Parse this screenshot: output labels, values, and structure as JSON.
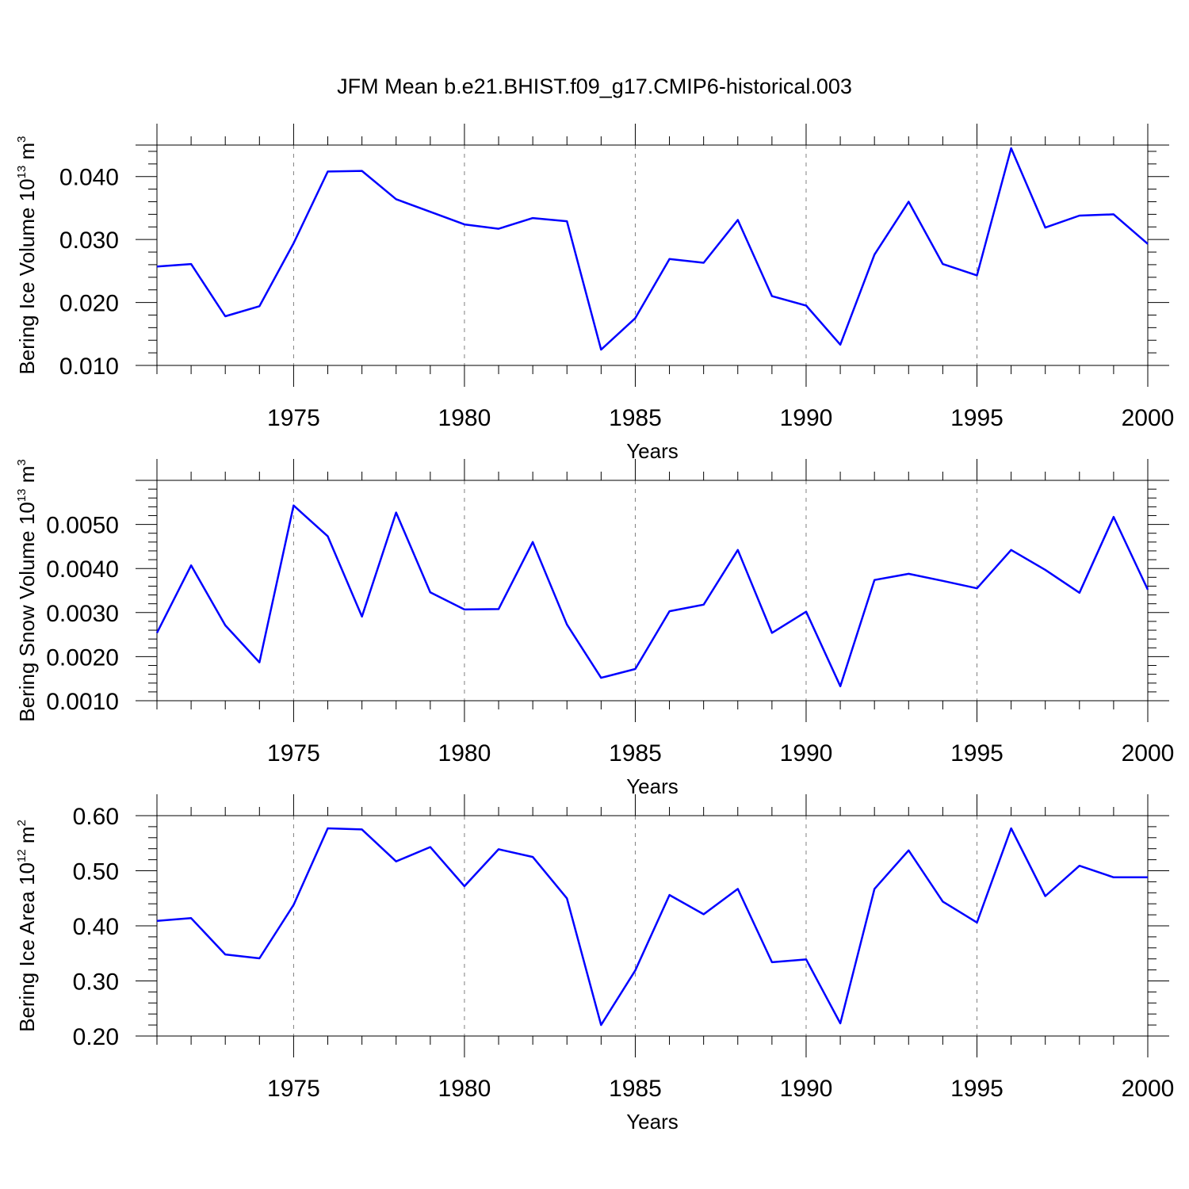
{
  "chart_data": {
    "title": "JFM Mean b.e21.BHIST.f09_g17.CMIP6-historical.003",
    "x": [
      1971,
      1972,
      1973,
      1974,
      1975,
      1976,
      1977,
      1978,
      1979,
      1980,
      1981,
      1982,
      1983,
      1984,
      1985,
      1986,
      1987,
      1988,
      1989,
      1990,
      1991,
      1992,
      1993,
      1994,
      1995,
      1996,
      1997,
      1998,
      1999,
      2000
    ],
    "xlim": [
      1971,
      2000
    ],
    "xticks": [
      1975,
      1980,
      1985,
      1990,
      1995,
      2000
    ],
    "xtick_labels": [
      "1975",
      "1980",
      "1985",
      "1990",
      "1995",
      "2000"
    ],
    "panels": [
      {
        "type": "line",
        "xlabel": "Years",
        "ylabel_prefix": "Bering Ice Volume 10",
        "ylabel_exp": "13",
        "ylabel_unit": " m",
        "ylabel_unit_exp": "3",
        "ylim": [
          0.01,
          0.045
        ],
        "yticks": [
          0.01,
          0.02,
          0.03,
          0.04
        ],
        "ytick_labels": [
          "0.010",
          "0.020",
          "0.030",
          "0.040"
        ],
        "color": "#0000ff",
        "values": [
          0.0257,
          0.0261,
          0.0178,
          0.0194,
          0.0294,
          0.0408,
          0.0409,
          0.0364,
          0.0344,
          0.0324,
          0.0317,
          0.0334,
          0.0329,
          0.0125,
          0.0175,
          0.0269,
          0.0263,
          0.0331,
          0.021,
          0.0195,
          0.0133,
          0.0276,
          0.036,
          0.0261,
          0.0243,
          0.0445,
          0.0319,
          0.0338,
          0.034,
          0.0293
        ]
      },
      {
        "type": "line",
        "xlabel": "Years",
        "ylabel_prefix": "Bering Snow Volume 10",
        "ylabel_exp": "13",
        "ylabel_unit": " m",
        "ylabel_unit_exp": "3",
        "ylim": [
          0.001,
          0.006
        ],
        "yticks": [
          0.001,
          0.002,
          0.003,
          0.004,
          0.005
        ],
        "ytick_labels": [
          "0.0010",
          "0.0020",
          "0.0030",
          "0.0040",
          "0.0050"
        ],
        "color": "#0000ff",
        "values": [
          0.00254,
          0.00407,
          0.00271,
          0.00187,
          0.00543,
          0.00473,
          0.00291,
          0.00527,
          0.00346,
          0.00307,
          0.00308,
          0.0046,
          0.00273,
          0.00152,
          0.00172,
          0.00303,
          0.00318,
          0.00442,
          0.00254,
          0.00302,
          0.00133,
          0.00374,
          0.00388,
          0.00372,
          0.00355,
          0.00442,
          0.00397,
          0.00345,
          0.00517,
          0.00352
        ]
      },
      {
        "type": "line",
        "xlabel": "Years",
        "ylabel_prefix": "Bering Ice Area 10",
        "ylabel_exp": "12",
        "ylabel_unit": " m",
        "ylabel_unit_exp": "2",
        "ylim": [
          0.2,
          0.6
        ],
        "yticks": [
          0.2,
          0.3,
          0.4,
          0.5,
          0.6
        ],
        "ytick_labels": [
          "0.20",
          "0.30",
          "0.40",
          "0.50",
          "0.60"
        ],
        "color": "#0000ff",
        "values": [
          0.409,
          0.414,
          0.348,
          0.341,
          0.438,
          0.577,
          0.575,
          0.517,
          0.543,
          0.472,
          0.539,
          0.525,
          0.45,
          0.22,
          0.319,
          0.456,
          0.421,
          0.467,
          0.334,
          0.339,
          0.223,
          0.467,
          0.537,
          0.444,
          0.406,
          0.577,
          0.454,
          0.509,
          0.488,
          0.488
        ]
      }
    ]
  }
}
